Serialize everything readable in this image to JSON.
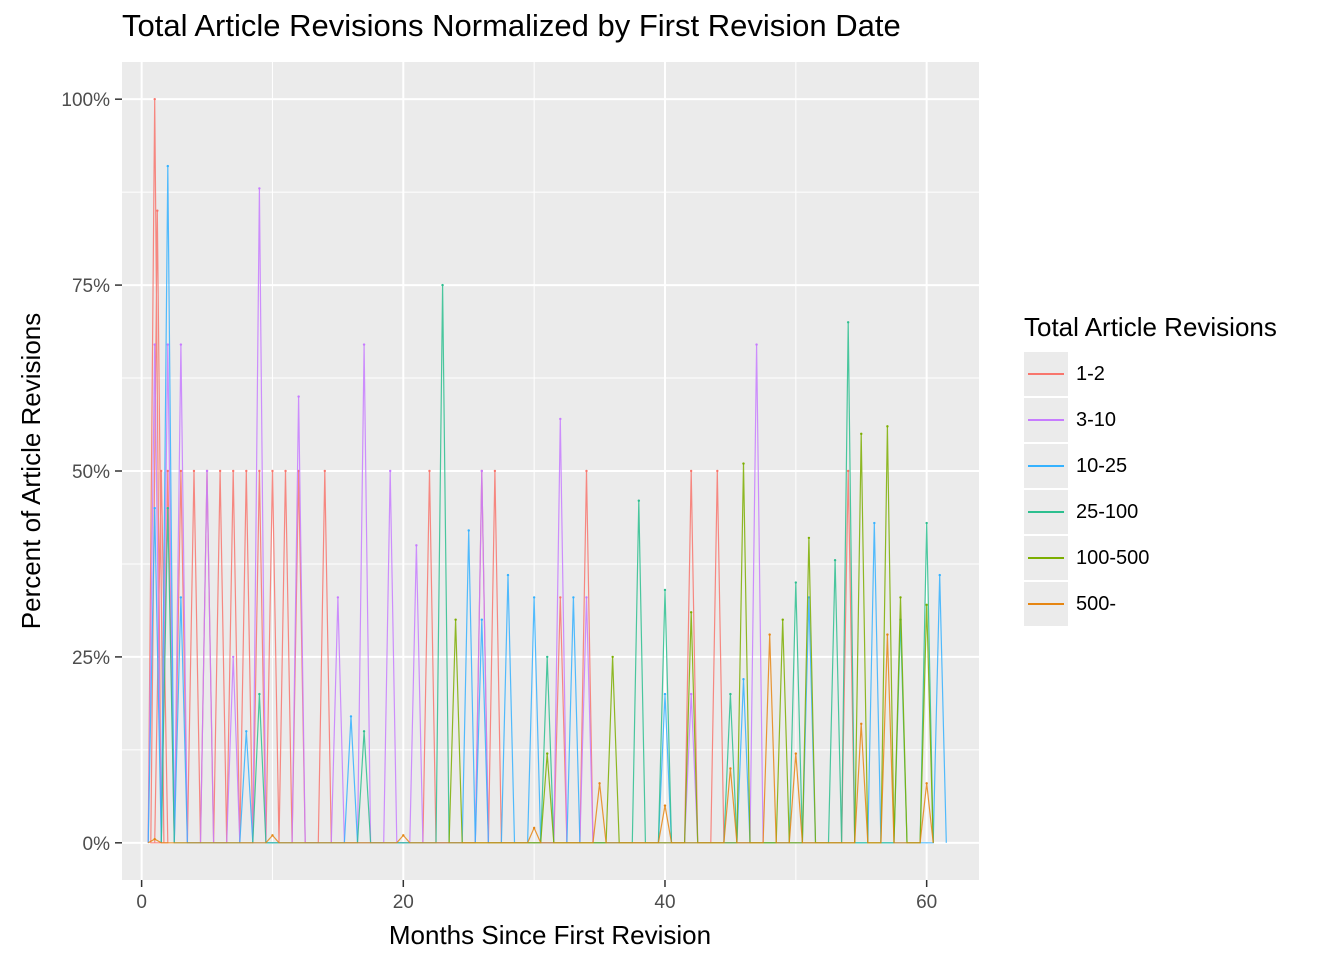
{
  "chart_data": {
    "type": "line",
    "title": "Total Article Revisions Normalized by First Revision Date",
    "xlabel": "Months Since First Revision",
    "ylabel": "Percent of Article Revisions",
    "xlim": [
      -1.5,
      64
    ],
    "ylim": [
      -5,
      105
    ],
    "x_ticks": [
      0,
      20,
      40,
      60
    ],
    "x_tick_labels": [
      "0",
      "20",
      "40",
      "60"
    ],
    "y_ticks": [
      0,
      25,
      50,
      75,
      100
    ],
    "y_tick_labels": [
      "0%",
      "25%",
      "50%",
      "75%",
      "100%"
    ],
    "grid": true,
    "background": "#ebebeb",
    "legend": {
      "title": "Total Article Revisions",
      "position": "right"
    },
    "series": [
      {
        "name": "1-2",
        "color": "#f8766d",
        "x": [
          1,
          1.2,
          1.5,
          2,
          3,
          4,
          5,
          6,
          7,
          8,
          9,
          10,
          11,
          12,
          14,
          22,
          26,
          27,
          32,
          34,
          42,
          44,
          54
        ],
        "values": [
          100,
          85,
          50,
          50,
          50,
          50,
          50,
          50,
          50,
          50,
          50,
          50,
          50,
          50,
          50,
          50,
          50,
          50,
          33,
          50,
          50,
          50,
          50
        ]
      },
      {
        "name": "3-10",
        "color": "#c77cff",
        "x": [
          1,
          2,
          3,
          5,
          7,
          9,
          12,
          15,
          17,
          19,
          21,
          26,
          32,
          34,
          42,
          47
        ],
        "values": [
          67,
          67,
          67,
          50,
          25,
          88,
          60,
          33,
          67,
          50,
          40,
          50,
          57,
          33,
          20,
          67
        ]
      },
      {
        "name": "10-25",
        "color": "#35b2ff",
        "x": [
          1,
          2,
          3,
          8,
          16,
          25,
          26,
          28,
          30,
          33,
          40,
          46,
          51,
          56,
          61
        ],
        "values": [
          45,
          91,
          33,
          15,
          17,
          42,
          30,
          36,
          33,
          33,
          20,
          22,
          33,
          43,
          36
        ]
      },
      {
        "name": "25-100",
        "color": "#2dbf8f",
        "x": [
          2,
          9,
          17,
          23,
          31,
          38,
          40,
          45,
          50,
          53,
          54,
          58,
          60
        ],
        "values": [
          45,
          20,
          15,
          75,
          25,
          46,
          34,
          20,
          35,
          38,
          70,
          30,
          43
        ]
      },
      {
        "name": "100-500",
        "color": "#7cae00",
        "x": [
          24,
          31,
          36,
          42,
          46,
          49,
          51,
          55,
          57,
          58,
          60
        ],
        "values": [
          30,
          12,
          25,
          31,
          51,
          30,
          41,
          55,
          56,
          33,
          32
        ]
      },
      {
        "name": "500-",
        "color": "#e68613",
        "x": [
          1,
          10,
          20,
          30,
          35,
          40,
          45,
          48,
          50,
          55,
          57,
          60
        ],
        "values": [
          0.5,
          1,
          1,
          2,
          8,
          5,
          10,
          28,
          12,
          16,
          28,
          8
        ]
      }
    ]
  }
}
